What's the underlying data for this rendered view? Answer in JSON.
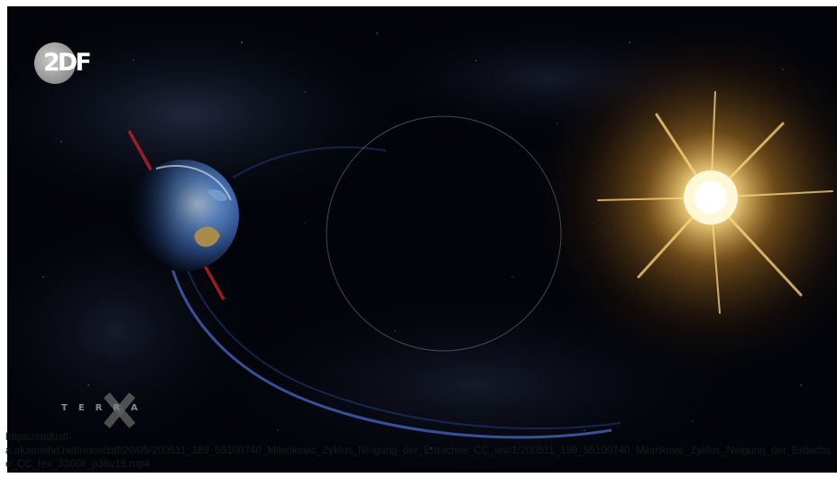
{
  "video": {
    "channel_logo_text": "2DF",
    "program_logo_text": "TERRA",
    "colors": {
      "sky": "#02040a",
      "earth": "#3f6fb8",
      "axis": "#c0222b",
      "orbit": "#4a68c8",
      "sun": "#ffe39a"
    }
  },
  "source": {
    "url_line1": "https://rodlzdf-",
    "url_line2": "a.akamaihd.net/none/zdf/20/05/200511_189_55100740_Milankovic_Zyklus_Neigung_der_Erdachse_CC_tex/1/200511_189_55100740_Milankovic_Zyklus_Neigung_der_Erdachse_CC_tex_3360k_p36v15.mp4"
  }
}
